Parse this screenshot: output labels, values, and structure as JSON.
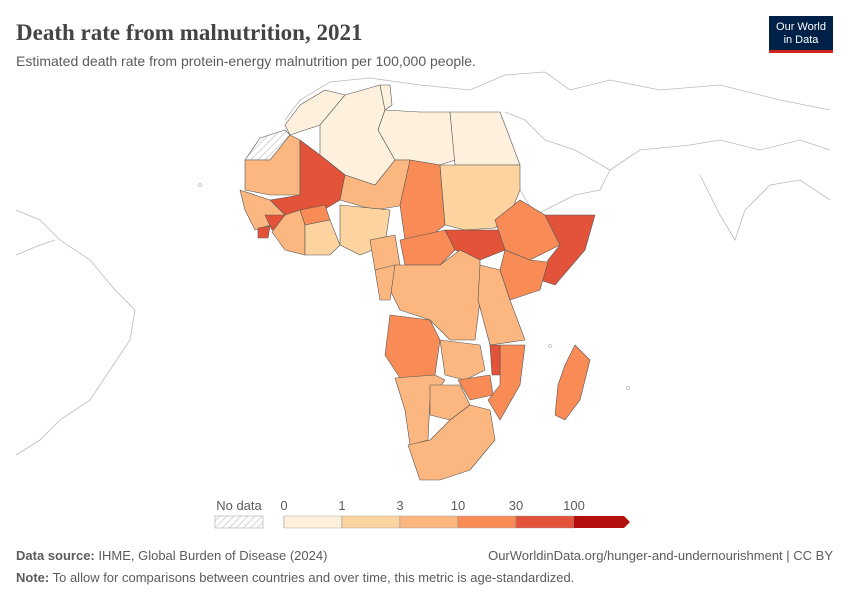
{
  "header": {
    "title": "Death rate from malnutrition, 2021",
    "subtitle": "Estimated death rate from protein-energy malnutrition per 100,000 people.",
    "logo": [
      "Our World",
      "in Data"
    ]
  },
  "legend": {
    "no_data": "No data",
    "bins": [
      0,
      1,
      3,
      10,
      30,
      100
    ],
    "colors": [
      "#fdf0dc",
      "#fdd3a0",
      "#fcb67f",
      "#f98b57",
      "#e2533a",
      "#b30f0f"
    ]
  },
  "footer": {
    "source_label": "Data source:",
    "source": "IHME, Global Burden of Disease (2024)",
    "url": "OurWorldinData.org/hunger-and-undernourishment | CC BY",
    "note_label": "Note:",
    "note": "To allow for comparisons between countries and over time, this metric is age-standardized."
  }
}
